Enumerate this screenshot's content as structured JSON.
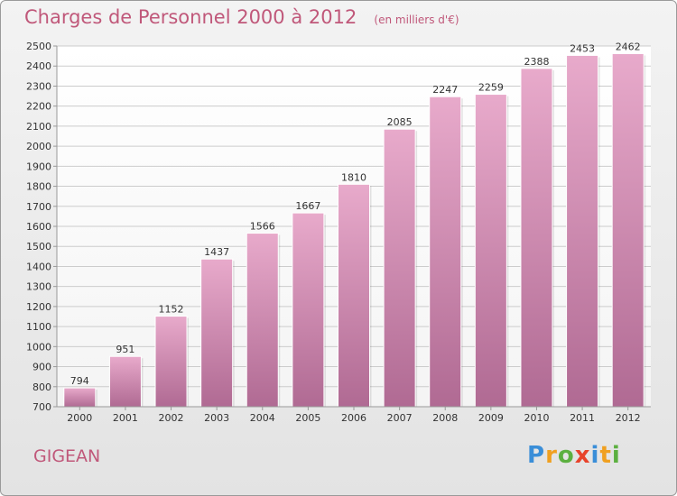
{
  "title": "Charges de Personnel 2000 à 2012",
  "subtitle": "(en milliers d'€)",
  "commune": "GIGEAN",
  "logo": {
    "letters": [
      {
        "char": "P",
        "color": "#3a8ed8"
      },
      {
        "char": "r",
        "color": "#f0a020"
      },
      {
        "char": "o",
        "color": "#5cb040"
      },
      {
        "char": "x",
        "color": "#e8432b"
      },
      {
        "char": "i",
        "color": "#3a8ed8"
      },
      {
        "char": "t",
        "color": "#f0a020"
      },
      {
        "char": "i",
        "color": "#5cb040"
      }
    ]
  },
  "colors": {
    "text_accent": "#c0587a",
    "bar_top": "#e8aacb",
    "bar_bottom": "#b06a93",
    "grid": "#cccccc"
  },
  "chart_data": {
    "type": "bar",
    "title": "Charges de Personnel 2000 à 2012",
    "subtitle": "(en milliers d'€)",
    "categories": [
      "2000",
      "2001",
      "2002",
      "2003",
      "2004",
      "2005",
      "2006",
      "2007",
      "2008",
      "2009",
      "2010",
      "2011",
      "2012"
    ],
    "values": [
      794,
      951,
      1152,
      1437,
      1566,
      1667,
      1810,
      2085,
      2247,
      2259,
      2388,
      2453,
      2462
    ],
    "ylim": [
      700,
      2500
    ],
    "yticks": [
      700,
      800,
      900,
      1000,
      1100,
      1200,
      1300,
      1400,
      1500,
      1600,
      1700,
      1800,
      1900,
      2000,
      2100,
      2200,
      2300,
      2400,
      2500
    ],
    "grid": true,
    "data_labels": true
  }
}
